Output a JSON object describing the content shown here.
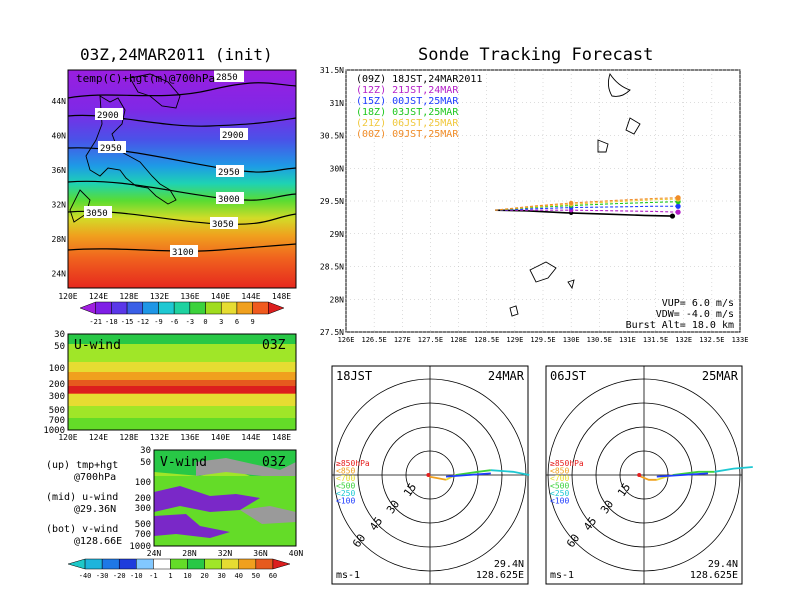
{
  "page": {
    "left_title": "03Z,24MAR2011 (init)",
    "right_title": "Sonde Tracking Forecast"
  },
  "map_panel": {
    "overlay_label": "temp(C)+hgt(m)@700hPa",
    "lat_ticks": [
      "44N",
      "40N",
      "36N",
      "32N",
      "28N",
      "24N"
    ],
    "lon_ticks": [
      "120E",
      "124E",
      "128E",
      "132E",
      "136E",
      "140E",
      "144E",
      "148E"
    ],
    "contour_labels": [
      "2850",
      "2900",
      "2900",
      "2950",
      "2950",
      "3000",
      "3050",
      "3050",
      "3100"
    ],
    "colorbar_labels": [
      "-21",
      "-18",
      "-15",
      "-12",
      "-9",
      "-6",
      "-3",
      "0",
      "3",
      "6",
      "9"
    ],
    "colorbar_colors": [
      "#a01ee0",
      "#7f1ee6",
      "#5a37e8",
      "#3a5fe6",
      "#1e96e6",
      "#1ec8d2",
      "#1ed2a0",
      "#3cd23c",
      "#a0dc1e",
      "#e6dc32",
      "#f0a01e",
      "#f05a1e",
      "#dc1e1e"
    ]
  },
  "uwind_panel": {
    "label": "U-wind",
    "time_label": "03Z",
    "y_ticks": [
      "30",
      "50",
      "100",
      "200",
      "300",
      "500",
      "700",
      "1000"
    ],
    "x_ticks": [
      "120E",
      "124E",
      "128E",
      "132E",
      "136E",
      "140E",
      "144E",
      "148E"
    ]
  },
  "vwind_panel": {
    "label": "V-wind",
    "time_label": "03Z",
    "y_ticks": [
      "30",
      "50",
      "100",
      "200",
      "300",
      "500",
      "700",
      "1000"
    ],
    "x_ticks": [
      "24N",
      "28N",
      "32N",
      "36N",
      "40N"
    ]
  },
  "side_notes": [
    {
      "line1": "(up) tmp+hgt",
      "line2": "@700hPa"
    },
    {
      "line1": "(mid) u-wind",
      "line2": "@29.36N"
    },
    {
      "line1": "(bot) v-wind",
      "line2": "@128.66E"
    }
  ],
  "wind_colorbar": {
    "labels": [
      "-40",
      "-30",
      "-20",
      "-10",
      "-1",
      "1",
      "10",
      "20",
      "30",
      "40",
      "50",
      "60"
    ],
    "colors": [
      "#1ec8c8",
      "#1eb4dc",
      "#1e78e6",
      "#1e3cdc",
      "#82c8ff",
      "#ffffff",
      "#64dc28",
      "#28c846",
      "#a0e628",
      "#e6dc32",
      "#f0a01e",
      "#e65a1e",
      "#dc1e1e"
    ]
  },
  "track_panel": {
    "legend": [
      {
        "text": "(09Z) 18JST,24MAR2011",
        "color": "#000000"
      },
      {
        "text": "(12Z) 21JST,24MAR",
        "color": "#b41ec8"
      },
      {
        "text": "(15Z) 00JST,25MAR",
        "color": "#1e3cff"
      },
      {
        "text": "(18Z) 03JST,25MAR",
        "color": "#1ec81e"
      },
      {
        "text": "(21Z) 06JST,25MAR",
        "color": "#f0c83c"
      },
      {
        "text": "(00Z) 09JST,25MAR",
        "color": "#f08c28"
      }
    ],
    "lat_ticks": [
      "31.5N",
      "31N",
      "30.5N",
      "30N",
      "29.5N",
      "29N",
      "28.5N",
      "28N",
      "27.5N"
    ],
    "lon_ticks": [
      "126E",
      "126.5E",
      "127E",
      "127.5E",
      "128E",
      "128.5E",
      "129E",
      "129.5E",
      "130E",
      "130.5E",
      "131E",
      "131.5E",
      "132E",
      "132.5E",
      "133E"
    ],
    "params": [
      "VUP= 6.0 m/s",
      "VDW= -4.0 m/s",
      "Burst Alt= 18.0 km"
    ]
  },
  "hodograph_left": {
    "time": "18JST",
    "date": "24MAR",
    "ring_labels": [
      "15",
      "30",
      "45",
      "60"
    ],
    "legend": [
      {
        "text": "≥850hPa",
        "color": "#e61e1e"
      },
      {
        "text": "<850",
        "color": "#f0a01e"
      },
      {
        "text": "<700",
        "color": "#e6dc32"
      },
      {
        "text": "<500",
        "color": "#3cd23c"
      },
      {
        "text": "<250",
        "color": "#1ec8d2"
      },
      {
        "text": "<100",
        "color": "#1e3cff"
      }
    ],
    "unit": "ms-1",
    "loc_lat": "29.4N",
    "loc_lon": "128.625E"
  },
  "hodograph_right": {
    "time": "06JST",
    "date": "25MAR",
    "ring_labels": [
      "15",
      "30",
      "45",
      "60"
    ],
    "legend": [
      {
        "text": "≥850hPa",
        "color": "#e61e1e"
      },
      {
        "text": "<850",
        "color": "#f0a01e"
      },
      {
        "text": "<700",
        "color": "#e6dc32"
      },
      {
        "text": "<500",
        "color": "#3cd23c"
      },
      {
        "text": "<250",
        "color": "#1ec8d2"
      },
      {
        "text": "<100",
        "color": "#1e3cff"
      }
    ],
    "unit": "ms-1",
    "loc_lat": "29.4N",
    "loc_lon": "128.625E"
  },
  "chart_data": [
    {
      "type": "line",
      "title": "Sonde Tracking Forecast",
      "xlabel": "",
      "ylabel": "",
      "xlim": [
        126,
        133
      ],
      "ylim": [
        27.5,
        31.5
      ],
      "grid": true,
      "legend_placement": "top-left",
      "series": [
        {
          "name": "(09Z) 18JST,24MAR2011",
          "color": "#000000",
          "x": [
            128.65,
            129.2,
            129.9,
            130.6,
            131.3,
            131.8
          ],
          "y": [
            29.36,
            29.35,
            29.32,
            29.3,
            29.28,
            29.27
          ]
        },
        {
          "name": "(12Z) 21JST,24MAR",
          "color": "#b41ec8",
          "x": [
            128.65,
            129.3,
            130.0,
            130.8,
            131.5,
            131.9
          ],
          "y": [
            29.36,
            29.36,
            29.36,
            29.35,
            29.34,
            29.33
          ]
        },
        {
          "name": "(15Z) 00JST,25MAR",
          "color": "#1e3cff",
          "x": [
            128.65,
            129.3,
            130.0,
            130.8,
            131.5,
            131.9
          ],
          "y": [
            29.36,
            29.38,
            29.4,
            29.41,
            29.42,
            29.42
          ]
        },
        {
          "name": "(18Z) 03JST,25MAR",
          "color": "#1ec81e",
          "x": [
            128.65,
            129.3,
            130.0,
            130.8,
            131.5,
            131.9
          ],
          "y": [
            29.36,
            29.4,
            29.43,
            29.46,
            29.48,
            29.49
          ]
        },
        {
          "name": "(21Z) 06JST,25MAR",
          "color": "#f0c83c",
          "x": [
            128.65,
            129.3,
            130.0,
            130.8,
            131.5,
            131.9
          ],
          "y": [
            29.36,
            29.41,
            29.45,
            29.49,
            29.52,
            29.53
          ]
        },
        {
          "name": "(00Z) 09JST,25MAR",
          "color": "#f08c28",
          "x": [
            128.65,
            129.3,
            130.0,
            130.8,
            131.5,
            131.9
          ],
          "y": [
            29.36,
            29.42,
            29.47,
            29.51,
            29.54,
            29.55
          ]
        }
      ]
    },
    {
      "type": "line",
      "title": "18JST 24MAR",
      "xlabel": "",
      "ylabel": "",
      "unit": "ms-1",
      "rlim": [
        0,
        60
      ],
      "series": [
        {
          "name": "≥850hPa",
          "color": "#e61e1e",
          "u": [
            -1,
            -0.5
          ],
          "v": [
            0,
            -1
          ]
        },
        {
          "name": "<850",
          "color": "#f0a01e",
          "u": [
            -0.5,
            5,
            10
          ],
          "v": [
            -1,
            -2,
            -3
          ]
        },
        {
          "name": "<700",
          "color": "#e6dc32",
          "u": [
            10,
            14,
            16
          ],
          "v": [
            -3,
            -1,
            0
          ]
        },
        {
          "name": "<500",
          "color": "#3cd23c",
          "u": [
            16,
            30,
            38
          ],
          "v": [
            0,
            2,
            3
          ]
        },
        {
          "name": "<250",
          "color": "#1ec8d2",
          "u": [
            38,
            52,
            62
          ],
          "v": [
            3,
            2,
            0
          ]
        },
        {
          "name": "<100",
          "color": "#1e3cff",
          "u": [
            10,
            24,
            38
          ],
          "v": [
            -1,
            0,
            1
          ]
        }
      ]
    },
    {
      "type": "line",
      "title": "06JST 25MAR",
      "xlabel": "",
      "ylabel": "",
      "unit": "ms-1",
      "rlim": [
        0,
        60
      ],
      "series": [
        {
          "name": "≥850hPa",
          "color": "#e61e1e",
          "u": [
            -3,
            -2
          ],
          "v": [
            0,
            -1
          ]
        },
        {
          "name": "<850",
          "color": "#f0a01e",
          "u": [
            -2,
            3,
            8
          ],
          "v": [
            -1,
            -3,
            -3
          ]
        },
        {
          "name": "<700",
          "color": "#e6dc32",
          "u": [
            8,
            14,
            18
          ],
          "v": [
            -3,
            -1,
            0
          ]
        },
        {
          "name": "<500",
          "color": "#3cd23c",
          "u": [
            18,
            34,
            44
          ],
          "v": [
            0,
            2,
            2
          ]
        },
        {
          "name": "<250",
          "color": "#1ec8d2",
          "u": [
            44,
            56,
            68
          ],
          "v": [
            2,
            4,
            5
          ]
        },
        {
          "name": "<100",
          "color": "#1e3cff",
          "u": [
            8,
            24,
            40
          ],
          "v": [
            -1,
            0,
            1
          ]
        }
      ]
    }
  ]
}
